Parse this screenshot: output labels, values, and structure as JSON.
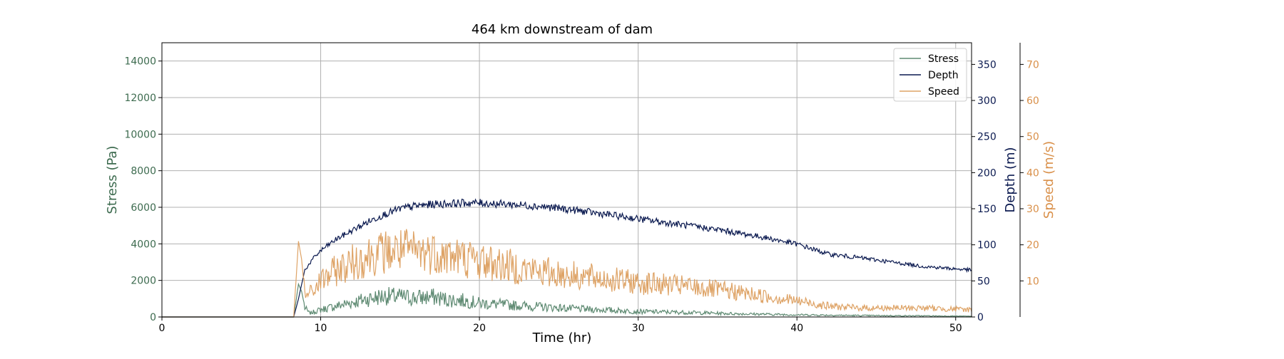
{
  "chart_data": {
    "type": "line",
    "title": "464 km downstream of dam",
    "xlabel": "Time (hr)",
    "xlim": [
      0,
      51
    ],
    "xticks": [
      0,
      10,
      20,
      30,
      40,
      50
    ],
    "grid": true,
    "legend_position": "top-right",
    "axes": {
      "stress": {
        "label": "Stress (Pa)",
        "lim": [
          0,
          15000
        ],
        "ticks": [
          0,
          2000,
          4000,
          6000,
          8000,
          10000,
          12000,
          14000
        ],
        "color": "#3d6b4f"
      },
      "depth": {
        "label": "Depth (m)",
        "lim": [
          0,
          380
        ],
        "ticks": [
          0,
          50,
          100,
          150,
          200,
          250,
          300,
          350
        ],
        "color": "#0b1a50"
      },
      "speed": {
        "label": "Speed (m/s)",
        "lim": [
          0,
          76
        ],
        "ticks": [
          10,
          20,
          30,
          40,
          50,
          60,
          70
        ],
        "color": "#d9904a"
      }
    },
    "series": [
      {
        "name": "Stress",
        "axis": "stress",
        "color": "#5e8a72",
        "noise": 0.45,
        "x": [
          0,
          8.3,
          8.6,
          8.8,
          9.0,
          9.3,
          10,
          11,
          12,
          13,
          14,
          15,
          16,
          17,
          18,
          19,
          20,
          22,
          24,
          26,
          28,
          30,
          33,
          36,
          40,
          44,
          48,
          51
        ],
        "y": [
          0,
          0,
          1800,
          1400,
          500,
          200,
          400,
          600,
          800,
          1000,
          1150,
          1100,
          1050,
          1100,
          950,
          900,
          750,
          650,
          550,
          450,
          380,
          300,
          250,
          180,
          120,
          80,
          60,
          40
        ]
      },
      {
        "name": "Depth",
        "axis": "depth",
        "color": "#0b1a50",
        "noise": 0.035,
        "x": [
          0,
          8.3,
          8.6,
          9.0,
          9.5,
          10,
          11,
          12,
          13,
          14,
          15,
          16,
          17,
          18,
          19,
          20,
          21,
          22,
          24,
          26,
          28,
          30,
          32,
          35,
          38,
          40,
          42,
          44,
          46,
          48,
          51
        ],
        "y": [
          0,
          0,
          25,
          65,
          80,
          92,
          108,
          120,
          132,
          142,
          150,
          154,
          156,
          157,
          158,
          158,
          157,
          156,
          153,
          148,
          142,
          136,
          130,
          121,
          110,
          101,
          87,
          82,
          76,
          70,
          65
        ]
      },
      {
        "name": "Speed",
        "axis": "speed",
        "color": "#dea366",
        "noise": 0.35,
        "x": [
          0,
          8.3,
          8.6,
          8.8,
          9.0,
          9.5,
          10,
          11,
          12,
          13,
          14,
          15,
          16,
          17,
          18,
          19,
          20,
          22,
          24,
          26,
          28,
          30,
          33,
          36,
          40,
          42,
          44,
          46,
          48,
          51
        ],
        "y": [
          0,
          0,
          21,
          16,
          6,
          7,
          10,
          13,
          15,
          17,
          18,
          18.5,
          18,
          18,
          17,
          16.5,
          15.5,
          14,
          12.5,
          11.5,
          10.5,
          9.5,
          8.5,
          7,
          4.5,
          3,
          2.5,
          2.5,
          2.5,
          2
        ]
      }
    ]
  }
}
